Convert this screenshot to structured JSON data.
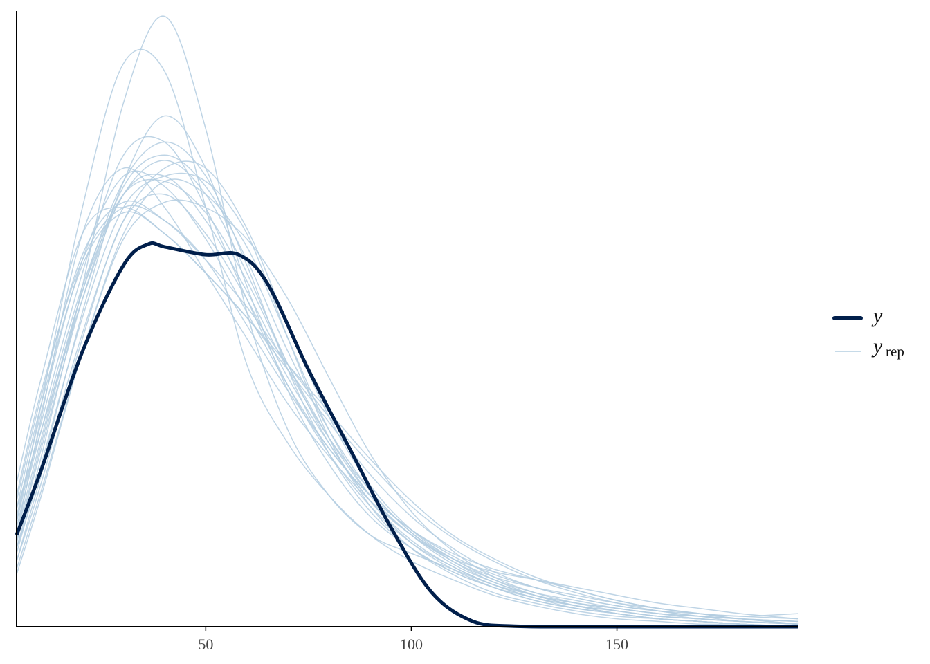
{
  "chart_data": {
    "type": "line",
    "title": "",
    "xlabel": "",
    "ylabel": "",
    "xlim": [
      4,
      194
    ],
    "ylim": [
      0,
      0.0235
    ],
    "x_ticks": [
      50,
      100,
      150
    ],
    "x_tick_labels": [
      "50",
      "100",
      "150"
    ],
    "y_axis_ticks_shown": false,
    "grid": false,
    "legend_position": "right",
    "legend": [
      {
        "label": "y",
        "subscript": "",
        "color": "#011f4b",
        "style": "thick"
      },
      {
        "label": "y",
        "subscript": "rep",
        "color": "#b3cde0",
        "style": "thin"
      }
    ],
    "series": [
      {
        "name": "y",
        "role": "observed",
        "color": "#011f4b",
        "x": [
          4,
          10,
          20,
          30,
          36,
          40,
          50,
          58,
          65,
          75,
          85,
          95,
          105,
          115,
          125,
          135,
          150,
          170,
          194
        ],
        "y": [
          0.0035,
          0.006,
          0.0105,
          0.0138,
          0.0146,
          0.0145,
          0.0142,
          0.0142,
          0.0131,
          0.0098,
          0.0068,
          0.0038,
          0.0013,
          0.0002,
          2e-05,
          0.0,
          0.0,
          0.0,
          0.0
        ]
      }
    ],
    "replicates": {
      "name": "y_rep",
      "color": "#b3cde0",
      "x": [
        4,
        10,
        20,
        30,
        40,
        50,
        60,
        70,
        80,
        90,
        100,
        110,
        120,
        130,
        140,
        150,
        160,
        170,
        180,
        194
      ],
      "draws": [
        [
          0.0045,
          0.0075,
          0.0125,
          0.0165,
          0.0172,
          0.0155,
          0.0128,
          0.0098,
          0.0072,
          0.0052,
          0.0036,
          0.0026,
          0.0018,
          0.0012,
          0.0008,
          0.0005,
          0.0003,
          0.0002,
          0.0001,
          0.0
        ],
        [
          0.004,
          0.0085,
          0.016,
          0.0215,
          0.0212,
          0.016,
          0.01,
          0.007,
          0.005,
          0.0035,
          0.0025,
          0.0018,
          0.0012,
          0.0008,
          0.0005,
          0.0003,
          0.0002,
          0.0001,
          0.0001,
          0.0
        ],
        [
          0.003,
          0.0065,
          0.013,
          0.02,
          0.0233,
          0.019,
          0.012,
          0.0075,
          0.005,
          0.0035,
          0.0028,
          0.0022,
          0.0016,
          0.0012,
          0.0009,
          0.0007,
          0.0005,
          0.0004,
          0.0003,
          0.0001
        ],
        [
          0.0035,
          0.008,
          0.015,
          0.0175,
          0.016,
          0.0135,
          0.011,
          0.0085,
          0.0065,
          0.0048,
          0.0035,
          0.0025,
          0.0018,
          0.0013,
          0.001,
          0.0007,
          0.0005,
          0.0003,
          0.0002,
          0.0001
        ],
        [
          0.0025,
          0.0055,
          0.011,
          0.0155,
          0.0165,
          0.015,
          0.0125,
          0.0095,
          0.007,
          0.0048,
          0.0032,
          0.0022,
          0.0015,
          0.001,
          0.0007,
          0.0005,
          0.0003,
          0.0002,
          0.0001,
          0.0
        ],
        [
          0.005,
          0.009,
          0.014,
          0.016,
          0.0155,
          0.014,
          0.0115,
          0.009,
          0.0068,
          0.005,
          0.0037,
          0.0027,
          0.002,
          0.0015,
          0.0011,
          0.0008,
          0.0006,
          0.0004,
          0.0003,
          0.0002
        ],
        [
          0.003,
          0.006,
          0.012,
          0.017,
          0.0195,
          0.0175,
          0.013,
          0.009,
          0.0062,
          0.0042,
          0.003,
          0.0021,
          0.0015,
          0.0011,
          0.0008,
          0.0006,
          0.0004,
          0.0003,
          0.0002,
          0.0001
        ],
        [
          0.004,
          0.0078,
          0.0135,
          0.018,
          0.0185,
          0.016,
          0.0125,
          0.0092,
          0.0066,
          0.0046,
          0.0032,
          0.0023,
          0.0016,
          0.0011,
          0.0008,
          0.0006,
          0.0004,
          0.0003,
          0.0002,
          0.0001
        ],
        [
          0.002,
          0.005,
          0.0105,
          0.015,
          0.017,
          0.0165,
          0.0145,
          0.011,
          0.0075,
          0.005,
          0.0035,
          0.0026,
          0.0021,
          0.0018,
          0.0015,
          0.0012,
          0.0009,
          0.0007,
          0.0005,
          0.0003
        ],
        [
          0.0055,
          0.0095,
          0.015,
          0.016,
          0.015,
          0.0135,
          0.0118,
          0.0098,
          0.0078,
          0.0058,
          0.0042,
          0.003,
          0.0021,
          0.0015,
          0.0011,
          0.0008,
          0.0006,
          0.0005,
          0.0004,
          0.0005
        ],
        [
          0.0035,
          0.0072,
          0.0128,
          0.0165,
          0.0178,
          0.0165,
          0.0135,
          0.01,
          0.007,
          0.0048,
          0.0033,
          0.0023,
          0.0016,
          0.0011,
          0.0007,
          0.0005,
          0.0003,
          0.0002,
          0.0001,
          0.0
        ],
        [
          0.0028,
          0.0062,
          0.0118,
          0.016,
          0.0172,
          0.017,
          0.015,
          0.011,
          0.0072,
          0.0046,
          0.003,
          0.002,
          0.0013,
          0.0009,
          0.0006,
          0.0004,
          0.0003,
          0.0002,
          0.0001,
          0.0
        ],
        [
          0.0042,
          0.0082,
          0.014,
          0.0172,
          0.0168,
          0.0148,
          0.012,
          0.0092,
          0.0068,
          0.005,
          0.0037,
          0.0028,
          0.0022,
          0.0018,
          0.0014,
          0.001,
          0.0007,
          0.0005,
          0.0003,
          0.0002
        ],
        [
          0.0032,
          0.0068,
          0.0125,
          0.0168,
          0.018,
          0.0168,
          0.014,
          0.0105,
          0.0075,
          0.0052,
          0.0036,
          0.0025,
          0.0017,
          0.0012,
          0.0008,
          0.0005,
          0.0003,
          0.0002,
          0.0001,
          0.0
        ],
        [
          0.0038,
          0.0075,
          0.013,
          0.0165,
          0.017,
          0.0158,
          0.0132,
          0.01,
          0.0072,
          0.005,
          0.0035,
          0.0024,
          0.0017,
          0.0012,
          0.0009,
          0.0007,
          0.0005,
          0.0004,
          0.0003,
          0.0002
        ],
        [
          0.0025,
          0.0058,
          0.0112,
          0.0155,
          0.0175,
          0.0175,
          0.0152,
          0.0115,
          0.008,
          0.0054,
          0.0037,
          0.0026,
          0.0019,
          0.0015,
          0.0012,
          0.0009,
          0.0007,
          0.0005,
          0.0003,
          0.0001
        ],
        [
          0.0048,
          0.0088,
          0.0142,
          0.0162,
          0.0155,
          0.014,
          0.0122,
          0.01,
          0.008,
          0.0062,
          0.0046,
          0.0034,
          0.0025,
          0.0018,
          0.0013,
          0.0009,
          0.0006,
          0.0004,
          0.0002,
          0.0001
        ],
        [
          0.0033,
          0.007,
          0.0128,
          0.017,
          0.0185,
          0.0172,
          0.0138,
          0.0098,
          0.0066,
          0.0044,
          0.003,
          0.0021,
          0.0015,
          0.001,
          0.0007,
          0.0005,
          0.0003,
          0.0002,
          0.0001,
          0.0
        ],
        [
          0.0022,
          0.0052,
          0.0105,
          0.0148,
          0.0162,
          0.016,
          0.0148,
          0.0125,
          0.0095,
          0.0066,
          0.0044,
          0.0029,
          0.0019,
          0.0013,
          0.0009,
          0.0006,
          0.0004,
          0.0003,
          0.0002,
          0.0001
        ],
        [
          0.0045,
          0.0085,
          0.0138,
          0.0158,
          0.015,
          0.0135,
          0.0118,
          0.01,
          0.0082,
          0.0064,
          0.0048,
          0.0035,
          0.0026,
          0.0019,
          0.0014,
          0.001,
          0.0007,
          0.0005,
          0.0004,
          0.0003
        ]
      ]
    }
  }
}
